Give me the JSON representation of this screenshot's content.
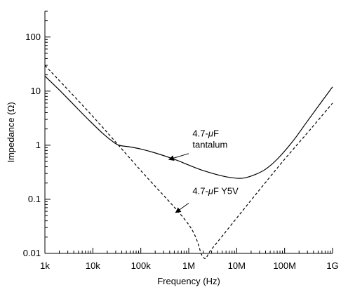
{
  "chart_data": {
    "type": "line",
    "xlabel": "Frequency (Hz)",
    "ylabel": "Impedance (Ω)",
    "x_scale": "log",
    "y_scale": "log",
    "xlim": [
      1000,
      1000000000
    ],
    "ylim": [
      0.01,
      300
    ],
    "grid": false,
    "x_ticks": [
      {
        "value": 1000,
        "label": "1k"
      },
      {
        "value": 10000,
        "label": "10k"
      },
      {
        "value": 100000,
        "label": "100k"
      },
      {
        "value": 1000000,
        "label": "1M"
      },
      {
        "value": 10000000,
        "label": "10M"
      },
      {
        "value": 100000000,
        "label": "100M"
      },
      {
        "value": 1000000000,
        "label": "1G"
      }
    ],
    "y_ticks": [
      {
        "value": 0.01,
        "label": "0.01"
      },
      {
        "value": 0.1,
        "label": "0.1"
      },
      {
        "value": 1,
        "label": "1"
      },
      {
        "value": 10,
        "label": "10"
      },
      {
        "value": 100,
        "label": "100"
      }
    ],
    "series": [
      {
        "name": "4.7-μF tantalum",
        "style": "solid",
        "color": "#000000",
        "points": [
          [
            1000,
            19
          ],
          [
            2000,
            10.5
          ],
          [
            4000,
            5.6
          ],
          [
            8000,
            3.0
          ],
          [
            15000,
            1.75
          ],
          [
            25000,
            1.2
          ],
          [
            35000,
            1.0
          ],
          [
            60000,
            0.93
          ],
          [
            100000,
            0.85
          ],
          [
            200000,
            0.72
          ],
          [
            500000,
            0.55
          ],
          [
            1000000,
            0.43
          ],
          [
            2000000,
            0.34
          ],
          [
            5000000,
            0.27
          ],
          [
            10000000,
            0.245
          ],
          [
            15000000,
            0.25
          ],
          [
            25000000,
            0.29
          ],
          [
            40000000,
            0.36
          ],
          [
            70000000,
            0.55
          ],
          [
            150000000,
            1.2
          ],
          [
            300000000,
            2.8
          ],
          [
            600000000,
            6.5
          ],
          [
            1000000000,
            12
          ]
        ]
      },
      {
        "name": "4.7-μF Y5V",
        "style": "dashed",
        "color": "#000000",
        "points": [
          [
            1000,
            30
          ],
          [
            10000,
            3.4
          ],
          [
            100000,
            0.34
          ],
          [
            1000000,
            0.034
          ],
          [
            2000000,
            0.0085
          ],
          [
            3000000,
            0.012
          ],
          [
            10000000,
            0.045
          ],
          [
            30000000,
            0.15
          ],
          [
            100000000,
            0.55
          ],
          [
            300000000,
            1.7
          ],
          [
            1000000000,
            6
          ]
        ]
      }
    ],
    "annotations": [
      {
        "line1_prefix": "4.7-",
        "line1_mu": "μ",
        "line1_suffix": "F",
        "line2": "tantalum",
        "text_at": [
          1200000,
          1.45
        ],
        "arrow_from": [
          1000000,
          0.7
        ],
        "arrow_to": [
          400000,
          0.55
        ]
      },
      {
        "line1_prefix": "4.7-",
        "line1_mu": "μ",
        "line1_suffix": "F Y5V",
        "text_at": [
          1200000,
          0.125
        ],
        "arrow_from": [
          1000000,
          0.085
        ],
        "arrow_to": [
          550000,
          0.058
        ]
      }
    ]
  }
}
